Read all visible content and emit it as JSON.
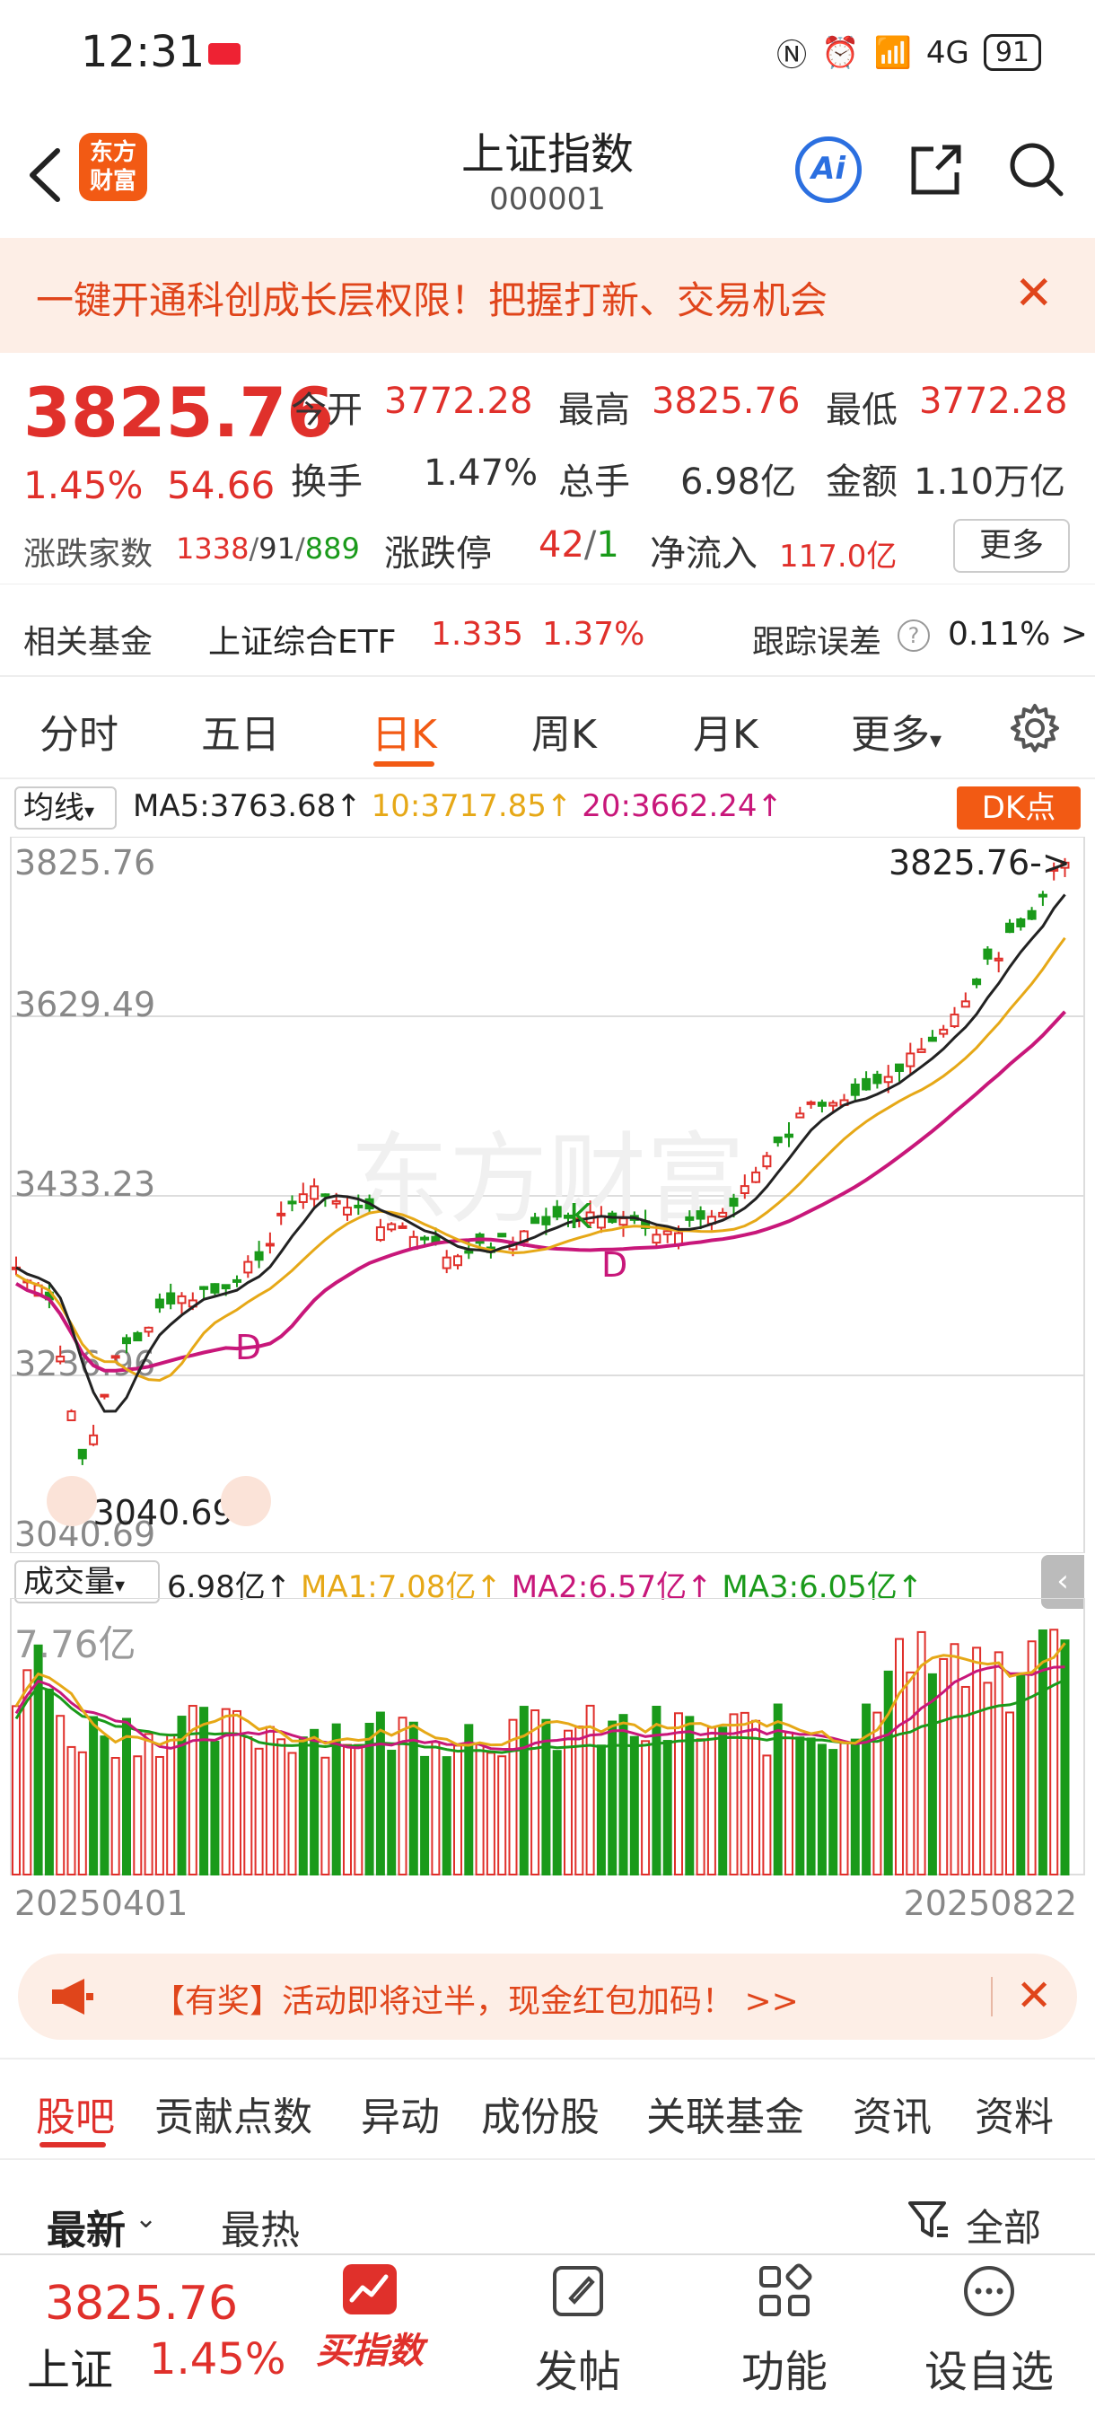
{
  "status_bar": {
    "time": "12:31",
    "battery": "91"
  },
  "header": {
    "title": "上证指数",
    "code": "000001",
    "brand": "东方\n财富",
    "ai_label": "Ai"
  },
  "promo": {
    "text": "一键开通科创成长层权限！把握打新、交易机会",
    "close": "✕"
  },
  "quote": {
    "price": "3825.76",
    "pct": "1.45%",
    "change": "54.66",
    "open_label": "今开",
    "open": "3772.28",
    "high_label": "最高",
    "high": "3825.76",
    "low_label": "最低",
    "low": "3772.28",
    "turnover_label": "换手",
    "turnover": "1.47%",
    "volume_label": "总手",
    "volume": "6.98亿",
    "amount_label": "金额",
    "amount": "1.10万亿",
    "breadth_label": "涨跌家数",
    "breadth_up": "1338",
    "breadth_flat": "91",
    "breadth_down": "889",
    "limit_label": "涨跌停",
    "limit_up": "42",
    "limit_down": "1",
    "netflow_label": "净流入",
    "netflow": "117.0亿",
    "more_label": "更多"
  },
  "fund": {
    "label": "相关基金",
    "name": "上证综合ETF",
    "price": "1.335",
    "pct": "1.37%",
    "tracking_label": "跟踪误差",
    "tracking_value": "0.11% >"
  },
  "tabs": [
    "分时",
    "五日",
    "日K",
    "周K",
    "月K",
    "更多"
  ],
  "ma": {
    "select": "均线",
    "ma5": "MA5:3763.68↑",
    "ma10": "10:3717.85↑",
    "ma20": "20:3662.24↑",
    "dk_label": "DK点",
    "colors": {
      "ma5": "#222222",
      "ma10": "#e6a817",
      "ma20": "#c8177a"
    }
  },
  "kline": {
    "y_labels": [
      "3825.76",
      "3629.49",
      "3433.23",
      "3236.96",
      "3040.69"
    ],
    "last_marker": "3825.76->",
    "low_marker": "<-3040.69",
    "signals": [
      "D",
      "K",
      "D"
    ],
    "watermark": "东方财富"
  },
  "volume": {
    "select": "成交量",
    "current": "6.98亿↑",
    "ma1": "MA1:7.08亿↑",
    "ma2": "MA2:6.57亿↑",
    "ma3": "MA3:6.05亿↑",
    "max_label": "7.76亿",
    "colors": {
      "ma1": "#e6a817",
      "ma2": "#c8177a",
      "ma3": "#1a9a1a"
    }
  },
  "dates": {
    "start": "20250401",
    "end": "20250822"
  },
  "ad": {
    "text": "【有奖】活动即将过半，现金红包加码！ >>",
    "close": "✕"
  },
  "section_tabs": [
    "股吧",
    "贡献点数",
    "异动",
    "成份股",
    "关联基金",
    "资讯",
    "资料"
  ],
  "sort": {
    "latest": "最新",
    "hot": "最热",
    "filter": "全部"
  },
  "bottom_bar": {
    "price": "3825.76",
    "name": "上证",
    "pct": "1.45%",
    "buy": "买指数",
    "post": "发帖",
    "func": "功能",
    "watch": "设自选"
  }
}
